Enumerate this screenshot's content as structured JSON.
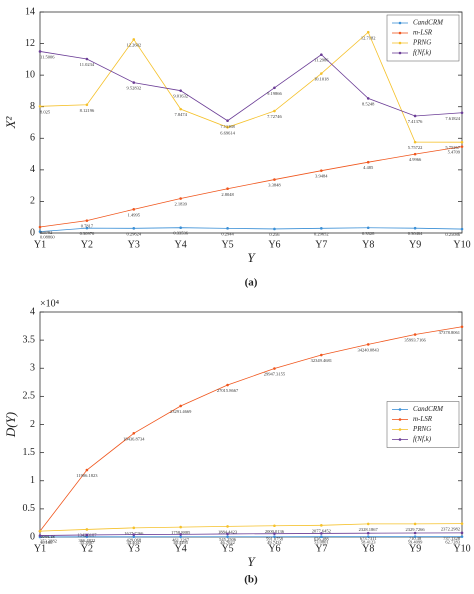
{
  "chart_data": [
    {
      "type": "line",
      "caption": "(a)",
      "xlabel": "Y",
      "ylabel": "X²",
      "categories": [
        "Y1",
        "Y2",
        "Y3",
        "Y4",
        "Y5",
        "Y6",
        "Y7",
        "Y8",
        "Y9",
        "Y10"
      ],
      "ylim": [
        0,
        14
      ],
      "yticks": [
        0,
        2,
        4,
        6,
        8,
        10,
        12,
        14
      ],
      "legend": "upper right",
      "grid": false,
      "series": [
        {
          "name": "CandCRM",
          "color": "#3a8fd6",
          "values": [
            0.0886,
            0.30976,
            0.29624,
            0.33536,
            0.2944,
            0.256,
            0.29652,
            0.3328,
            0.30464,
            0.25086
          ],
          "value_labels": [
            "0.08860",
            "0.30976",
            "0.29624",
            "0.33536",
            "0.2944",
            "0.256",
            "0.29652",
            "0.3328",
            "0.30464",
            "0.25086"
          ]
        },
        {
          "name": "m-LSR",
          "color": "#f0561d",
          "values": [
            0.3792,
            0.7817,
            1.4995,
            2.1839,
            2.8048,
            3.3848,
            3.9484,
            4.485,
            4.9966,
            5.4709
          ]
        },
        {
          "name": "PRNG",
          "color": "#f5c12a",
          "values": [
            8.025,
            8.12196,
            12.2602,
            7.8474,
            6.69614,
            7.72746,
            10.1018,
            12.7182,
            5.75722,
            5.75267
          ]
        },
        {
          "name": "f(Nf,k)",
          "color": "#6b3d96",
          "values": [
            11.5006,
            11.0234,
            9.52832,
            9.01632,
            7.11168,
            9.19866,
            11.2986,
            8.5248,
            7.41376,
            7.61824
          ]
        }
      ]
    },
    {
      "type": "line",
      "caption": "(b)",
      "xlabel": "Y",
      "ylabel": "D(Y)",
      "y_scale_label": "×10⁴",
      "categories": [
        "Y1",
        "Y2",
        "Y3",
        "Y4",
        "Y5",
        "Y6",
        "Y7",
        "Y8",
        "Y9",
        "Y10"
      ],
      "ylim": [
        0,
        40000
      ],
      "yticks": [
        0,
        {
          "value": 5000,
          "label": "0.5"
        },
        {
          "value": 10000,
          "label": "1"
        },
        {
          "value": 15000,
          "label": "1.5"
        },
        {
          "value": 20000,
          "label": "2"
        },
        {
          "value": 25000,
          "label": "2.5"
        },
        {
          "value": 30000,
          "label": "3"
        },
        {
          "value": 35000,
          "label": "3.5"
        },
        {
          "value": 40000,
          "label": "4"
        }
      ],
      "legend": "right",
      "grid": false,
      "series": [
        {
          "name": "CandCRM",
          "color": "#3a8fd6",
          "values": [
            10.186,
            35.3867,
            34.4047,
            40.4495,
            46.7022,
            49.7431,
            53.0801,
            58.4123,
            59.4099,
            62.7283
          ]
        },
        {
          "name": "m-LSR",
          "color": "#f0561d",
          "values": [
            1044.18,
            11906.1823,
            18436.8734,
            23291.4669,
            27015.8667,
            29947.3155,
            32349.4681,
            34240.0843,
            35993.7166,
            37378.8061
          ]
        },
        {
          "name": "PRNG",
          "color": "#f5c12a",
          "values": [
            1044.18,
            1342.3187,
            1627.7266,
            1758.8885,
            1884.4423,
            2000.0136,
            2077.6452,
            2328.1867,
            2329.7266,
            2372.2982
          ]
        },
        {
          "name": "f(Nf,k)",
          "color": "#6b3d96",
          "values": [
            253.2882,
            366.4822,
            429.068,
            461.2267,
            545.2506,
            591.0758,
            636.388,
            673.7311,
            710.38,
            737.1328
          ]
        }
      ]
    }
  ]
}
